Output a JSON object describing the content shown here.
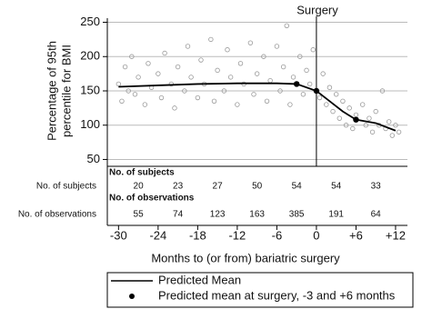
{
  "chart_data": {
    "type": "scatter",
    "title": "Surgery",
    "x_label": "Months to (or from) bariatric surgery",
    "y_label": [
      "Percentage of 95th",
      "percentile for BMI"
    ],
    "xlim": [
      -31.7,
      13.8
    ],
    "ylim": [
      40,
      256
    ],
    "xticks": [
      -30,
      -24,
      -18,
      -12,
      -6,
      0,
      {
        "value": 6,
        "label": "+6"
      },
      {
        "value": 12,
        "label": "+12"
      }
    ],
    "yticks": [
      50,
      100,
      150,
      200,
      250
    ],
    "grid": true,
    "observations": {
      "color": "#999999",
      "x": [
        -30,
        -29.5,
        -29,
        -28.5,
        -28,
        -27.5,
        -27,
        -26,
        -25.5,
        -25,
        -24,
        -23.5,
        -23,
        -22,
        -21.5,
        -21,
        -20,
        -19.5,
        -19,
        -18,
        -17.5,
        -17,
        -16,
        -15.5,
        -15,
        -14,
        -13.5,
        -13,
        -12,
        -11.5,
        -11,
        -10,
        -9.5,
        -9,
        -8,
        -7.5,
        -7,
        -6,
        -5.5,
        -5,
        -4.5,
        -4,
        -3.5,
        -2.5,
        -2,
        -1.5,
        -1,
        -0.5,
        0.5,
        1,
        1.5,
        2,
        2.5,
        3,
        3.5,
        4,
        4.5,
        5,
        5.5,
        6,
        7,
        7.5,
        8,
        8.5,
        9,
        9.5,
        10,
        10.5,
        11,
        11.5,
        12,
        12.5
      ],
      "y": [
        160,
        135,
        185,
        150,
        200,
        145,
        170,
        130,
        190,
        155,
        175,
        140,
        205,
        160,
        125,
        185,
        150,
        215,
        170,
        140,
        195,
        160,
        225,
        135,
        180,
        150,
        210,
        170,
        130,
        190,
        160,
        220,
        145,
        175,
        200,
        135,
        165,
        215,
        150,
        185,
        245,
        130,
        170,
        200,
        145,
        180,
        160,
        210,
        140,
        175,
        130,
        155,
        120,
        145,
        110,
        135,
        100,
        125,
        95,
        115,
        130,
        100,
        110,
        90,
        120,
        100,
        150,
        95,
        105,
        85,
        100,
        90
      ]
    },
    "series": [
      {
        "name": "Predicted Mean",
        "color": "#000000",
        "x": [
          -30,
          -24,
          -18,
          -12,
          -6,
          -3,
          0,
          2,
          4,
          6,
          9,
          12
        ],
        "values": [
          156,
          158,
          160,
          161,
          161,
          160,
          150,
          135,
          120,
          108,
          103,
          92
        ]
      },
      {
        "name": "Predicted mean at surgery, -3 and +6 months",
        "color": "#000000",
        "x": [
          -3,
          0,
          6
        ],
        "values": [
          160,
          150,
          108
        ]
      }
    ],
    "tables": [
      {
        "title": "No. of subjects",
        "row_label": "No. of subjects",
        "values": [
          20,
          23,
          27,
          50,
          54,
          54,
          33
        ]
      },
      {
        "title": "No. of observations",
        "row_label": "No. of observations",
        "values": [
          55,
          74,
          123,
          163,
          385,
          191,
          64
        ]
      }
    ]
  }
}
